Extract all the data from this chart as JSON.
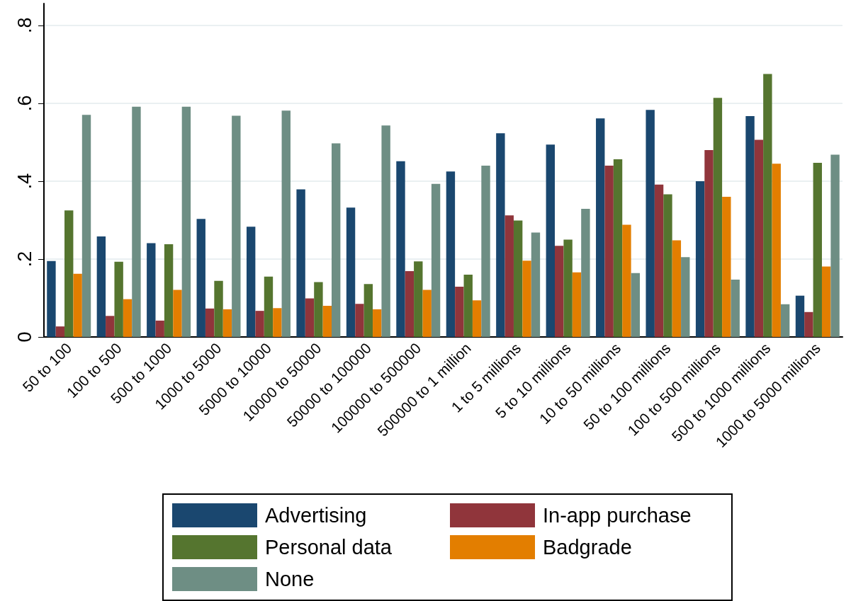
{
  "chart_data": {
    "type": "bar",
    "categories": [
      "50 to 100",
      "100 to 500",
      "500 to 1000",
      "1000 to 5000",
      "5000 to 10000",
      "10000 to 50000",
      "50000 to 100000",
      "100000 to 500000",
      "500000 to 1 million",
      "1 to 5 millions",
      "5 to 10 millions",
      "10 to 50 millions",
      "50 to 100 millions",
      "100 to 500 millions",
      "500 to 1000 millions",
      "1000 to 5000 millions"
    ],
    "series": [
      {
        "name": "Advertising",
        "color": "#1a476f",
        "values": [
          0.195,
          0.258,
          0.241,
          0.303,
          0.283,
          0.379,
          0.332,
          0.451,
          0.425,
          0.523,
          0.494,
          0.561,
          0.583,
          0.4,
          0.567,
          0.106
        ]
      },
      {
        "name": "In-app purchase",
        "color": "#90353b",
        "values": [
          0.027,
          0.054,
          0.042,
          0.073,
          0.067,
          0.099,
          0.085,
          0.169,
          0.129,
          0.312,
          0.234,
          0.44,
          0.391,
          0.48,
          0.506,
          0.064
        ]
      },
      {
        "name": "Personal data",
        "color": "#55752f",
        "values": [
          0.325,
          0.193,
          0.238,
          0.144,
          0.155,
          0.141,
          0.136,
          0.194,
          0.16,
          0.299,
          0.25,
          0.456,
          0.366,
          0.614,
          0.675,
          0.447
        ]
      },
      {
        "name": "Badgrade",
        "color": "#e37e00",
        "values": [
          0.162,
          0.097,
          0.121,
          0.071,
          0.074,
          0.08,
          0.071,
          0.121,
          0.094,
          0.196,
          0.166,
          0.288,
          0.248,
          0.36,
          0.445,
          0.181
        ]
      },
      {
        "name": "None",
        "color": "#6e8e84",
        "values": [
          0.57,
          0.591,
          0.591,
          0.568,
          0.581,
          0.497,
          0.543,
          0.393,
          0.44,
          0.268,
          0.329,
          0.164,
          0.205,
          0.147,
          0.084,
          0.468
        ]
      }
    ],
    "ylim": [
      0,
      0.856
    ],
    "yticks": [
      {
        "value": 0,
        "label": "0"
      },
      {
        "value": 0.2,
        "label": ".2"
      },
      {
        "value": 0.4,
        "label": ".4"
      },
      {
        "value": 0.6,
        "label": ".6"
      },
      {
        "value": 0.8,
        "label": ".8"
      }
    ],
    "grid": "y",
    "legend": "bottom"
  }
}
